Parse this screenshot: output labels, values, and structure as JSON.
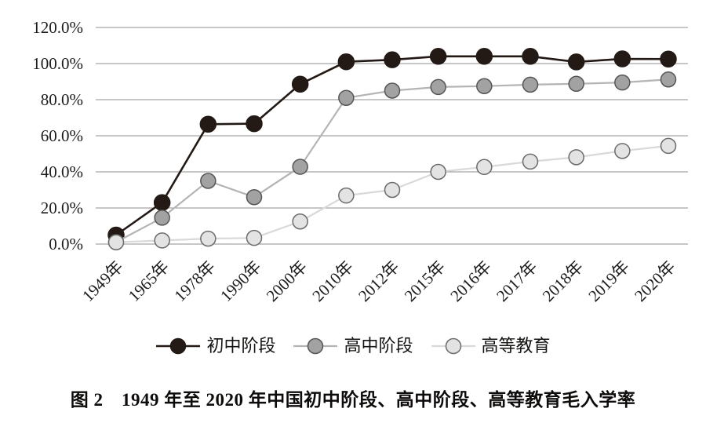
{
  "figure": {
    "caption": "图 2　1949 年至 2020 年中国初中阶段、高中阶段、高等教育毛入学率"
  },
  "chart_data": {
    "type": "line",
    "title": "",
    "xlabel": "",
    "ylabel": "",
    "categories": [
      "1949年",
      "1965年",
      "1978年",
      "1990年",
      "2000年",
      "2010年",
      "2012年",
      "2015年",
      "2016年",
      "2017年",
      "2018年",
      "2019年",
      "2020年"
    ],
    "series": [
      {
        "name": "初中阶段",
        "values": [
          5.0,
          23.0,
          66.4,
          66.7,
          88.6,
          101.0,
          102.1,
          104.0,
          104.0,
          104.0,
          100.9,
          102.6,
          102.5
        ],
        "line_color": "#231a16",
        "line_width": 2.6,
        "marker_fill": "#231a16",
        "marker_stroke": "#231a16",
        "marker_radius": 10
      },
      {
        "name": "高中阶段",
        "values": [
          1.1,
          14.6,
          35.0,
          26.0,
          42.8,
          81.0,
          85.0,
          87.0,
          87.5,
          88.3,
          88.8,
          89.5,
          91.2
        ],
        "line_color": "#b4b4b5",
        "line_width": 2.2,
        "marker_fill": "#a2a2a2",
        "marker_stroke": "#575554",
        "marker_radius": 9.5
      },
      {
        "name": "高等教育",
        "values": [
          1.0,
          2.0,
          3.0,
          3.4,
          12.5,
          26.9,
          30.0,
          40.0,
          42.7,
          45.7,
          48.1,
          51.6,
          54.4
        ],
        "line_color": "#d9d9da",
        "line_width": 2.2,
        "marker_fill": "#e3e3e3",
        "marker_stroke": "#6b6b6b",
        "marker_radius": 9.5
      }
    ],
    "ylim": [
      0,
      120
    ],
    "y_ticks": [
      {
        "value": 0,
        "label": "0.0%"
      },
      {
        "value": 20,
        "label": "20.0%"
      },
      {
        "value": 40,
        "label": "40.0%"
      },
      {
        "value": 60,
        "label": "60.0%"
      },
      {
        "value": 80,
        "label": "80.0%"
      },
      {
        "value": 100,
        "label": "100.0%"
      },
      {
        "value": 120,
        "label": "120.0%"
      }
    ],
    "grid": true,
    "grid_color": "#8f8f8f",
    "legend_position": "bottom",
    "background": "#ffffff"
  }
}
